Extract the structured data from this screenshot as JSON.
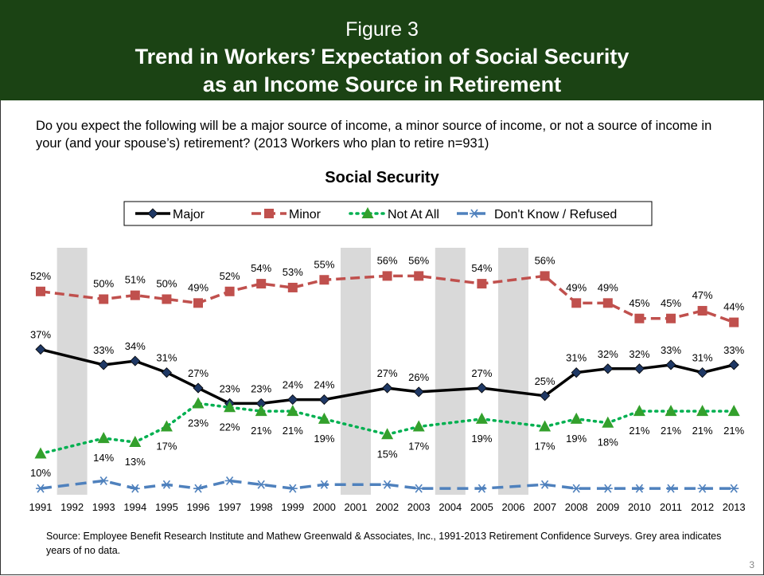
{
  "header": {
    "figure_label": "Figure 3",
    "title_line1": "Trend in Workers’ Expectation of Social Security",
    "title_line2": "as an Income Source in Retirement"
  },
  "question": "Do you expect the following will be a major source of income, a minor source of income, or not a source of income in your (and your spouse’s) retirement?  (2013 Workers who plan to retire n=931)",
  "source_note": "Source:  Employee Benefit Research Institute and Mathew Greenwald & Associates, Inc., 1991-2013 Retirement Confidence Surveys. Grey area indicates years of no data.",
  "page_number": "3",
  "chart_data": {
    "type": "line",
    "title": "Social Security",
    "x": [
      "1991",
      "1992",
      "1993",
      "1994",
      "1995",
      "1996",
      "1997",
      "1998",
      "1999",
      "2000",
      "2001",
      "2002",
      "2003",
      "2004",
      "2005",
      "2006",
      "2007",
      "2008",
      "2009",
      "2010",
      "2011",
      "2012",
      "2013"
    ],
    "ylim": [
      0,
      60
    ],
    "no_data_years": [
      "1992",
      "2001",
      "2004",
      "2006"
    ],
    "legend_position": "top",
    "series": [
      {
        "name": "Major",
        "color": "#000000",
        "line": "solid",
        "marker": "diamond",
        "marker_color": "#1f3864",
        "values": [
          37,
          null,
          33,
          34,
          31,
          27,
          23,
          23,
          24,
          24,
          null,
          27,
          26,
          null,
          27,
          null,
          25,
          31,
          32,
          32,
          33,
          31,
          33
        ]
      },
      {
        "name": "Minor",
        "color": "#c0504d",
        "line": "dashed",
        "marker": "square",
        "marker_color": "#c0504d",
        "values": [
          52,
          null,
          50,
          51,
          50,
          49,
          52,
          54,
          53,
          55,
          null,
          56,
          56,
          null,
          54,
          null,
          56,
          49,
          49,
          45,
          45,
          47,
          44
        ]
      },
      {
        "name": "Not At All",
        "color": "#00b050",
        "line": "dotted",
        "marker": "triangle",
        "marker_color": "#33a02c",
        "values": [
          10,
          null,
          14,
          13,
          17,
          23,
          22,
          21,
          21,
          19,
          null,
          15,
          17,
          null,
          19,
          null,
          17,
          19,
          18,
          21,
          21,
          21,
          21
        ]
      },
      {
        "name": "Don't Know / Refused",
        "color": "#4f81bd",
        "line": "dashed",
        "marker": "asterisk",
        "marker_color": "#4f81bd",
        "values": [
          1,
          null,
          3,
          1,
          2,
          1,
          3,
          2,
          1,
          2,
          null,
          2,
          1,
          null,
          1,
          null,
          2,
          1,
          1,
          1,
          1,
          1,
          1
        ]
      }
    ],
    "labels": {
      "Major": [
        "37%",
        null,
        "33%",
        "34%",
        "31%",
        "27%",
        "23%",
        "23%",
        "24%",
        "24%",
        null,
        "27%",
        "26%",
        null,
        "27%",
        null,
        "25%",
        "31%",
        "32%",
        "32%",
        "33%",
        "31%",
        "33%"
      ],
      "Minor": [
        "52%",
        null,
        "50%",
        "51%",
        "50%",
        "49%",
        "52%",
        "54%",
        "53%",
        "55%",
        null,
        "56%",
        "56%",
        null,
        "54%",
        null,
        "56%",
        "49%",
        "49%",
        "45%",
        "45%",
        "47%",
        "44%"
      ],
      "Not At All": [
        "10%",
        null,
        "14%",
        "13%",
        "17%",
        "23%",
        "22%",
        "21%",
        "21%",
        "19%",
        null,
        "15%",
        "17%",
        null,
        "19%",
        null,
        "17%",
        "19%",
        "18%",
        "21%",
        "21%",
        "21%",
        "21%"
      ]
    }
  }
}
